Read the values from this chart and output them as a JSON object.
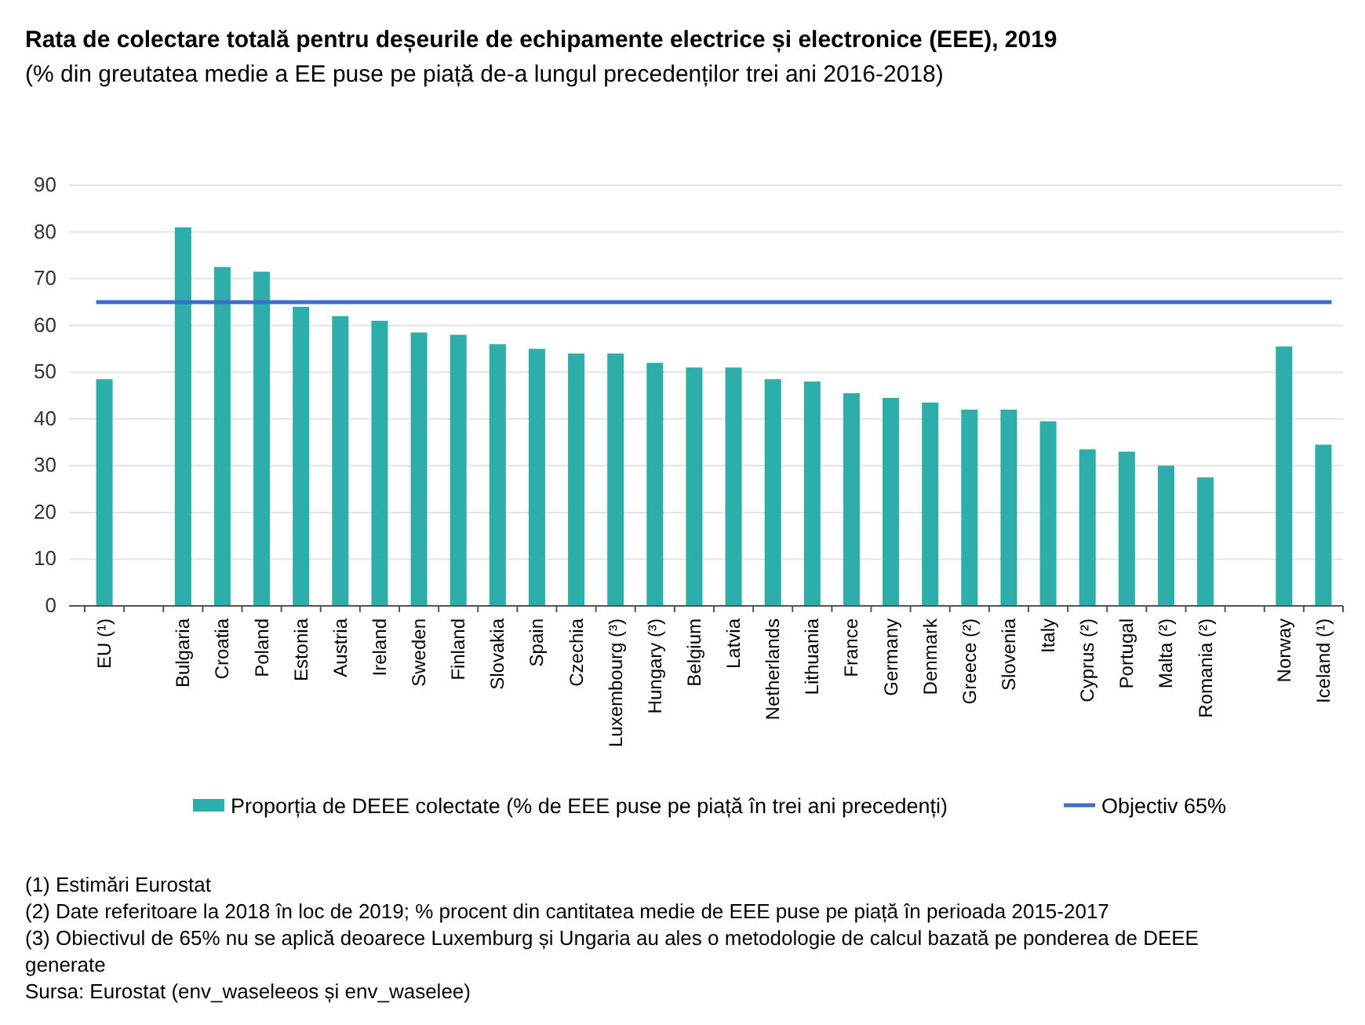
{
  "chart_data": {
    "type": "bar",
    "title": "Rata de colectare totală pentru deșeurile de echipamente electrice și electronice (EEE), 2019",
    "subtitle": "(% din greutatea medie a EE puse pe piață de-a lungul precedenților trei ani 2016-2018)",
    "categories": [
      "EU (¹)",
      null,
      "Bulgaria",
      "Croatia",
      "Poland",
      "Estonia",
      "Austria",
      "Ireland",
      "Sweden",
      "Finland",
      "Slovakia",
      "Spain",
      "Czechia",
      "Luxembourg (³)",
      "Hungary (³)",
      "Belgium",
      "Latvia",
      "Netherlands",
      "Lithuania",
      "France",
      "Germany",
      "Denmark",
      "Greece (²)",
      "Slovenia",
      "Italy",
      "Cyprus (²)",
      "Portugal",
      "Malta (²)",
      "Romania (²)",
      null,
      "Norway",
      "Iceland (¹)"
    ],
    "series": [
      {
        "name": "Proporția de DEEE colectate (% de EEE puse pe piață în trei ani precedenți)",
        "color": "#2eaeaa",
        "values": [
          48.5,
          null,
          81,
          72.5,
          71.5,
          64,
          62,
          61,
          58.5,
          58,
          56,
          55,
          54,
          54,
          52,
          51,
          51,
          48.5,
          48,
          45.5,
          44.5,
          43.5,
          42,
          42,
          39.5,
          33.5,
          33,
          30,
          27.5,
          null,
          55.5,
          34.5
        ]
      }
    ],
    "ylim": [
      0,
      90
    ],
    "yticks": [
      0,
      10,
      20,
      30,
      40,
      50,
      60,
      70,
      80,
      90
    ],
    "grid": "y",
    "legend": "bottom",
    "ref_lines": [
      {
        "axis": "y",
        "value": 65,
        "label": "Objectiv 65%",
        "color": "#3a6fc4"
      }
    ],
    "annotations": [
      "(1) Estimări Eurostat",
      "(2) Date referitoare la 2018 în loc de 2019; % procent din cantitatea medie de EEE puse pe piață în perioada 2015-2017",
      "(3) Obiectivul de 65% nu se aplică deoarece Luxemburg și Ungaria au ales o metodologie de calcul bazată pe ponderea de DEEE generate",
      "Sursa: Eurostat (env_waseleeos și env_waselee)"
    ]
  }
}
